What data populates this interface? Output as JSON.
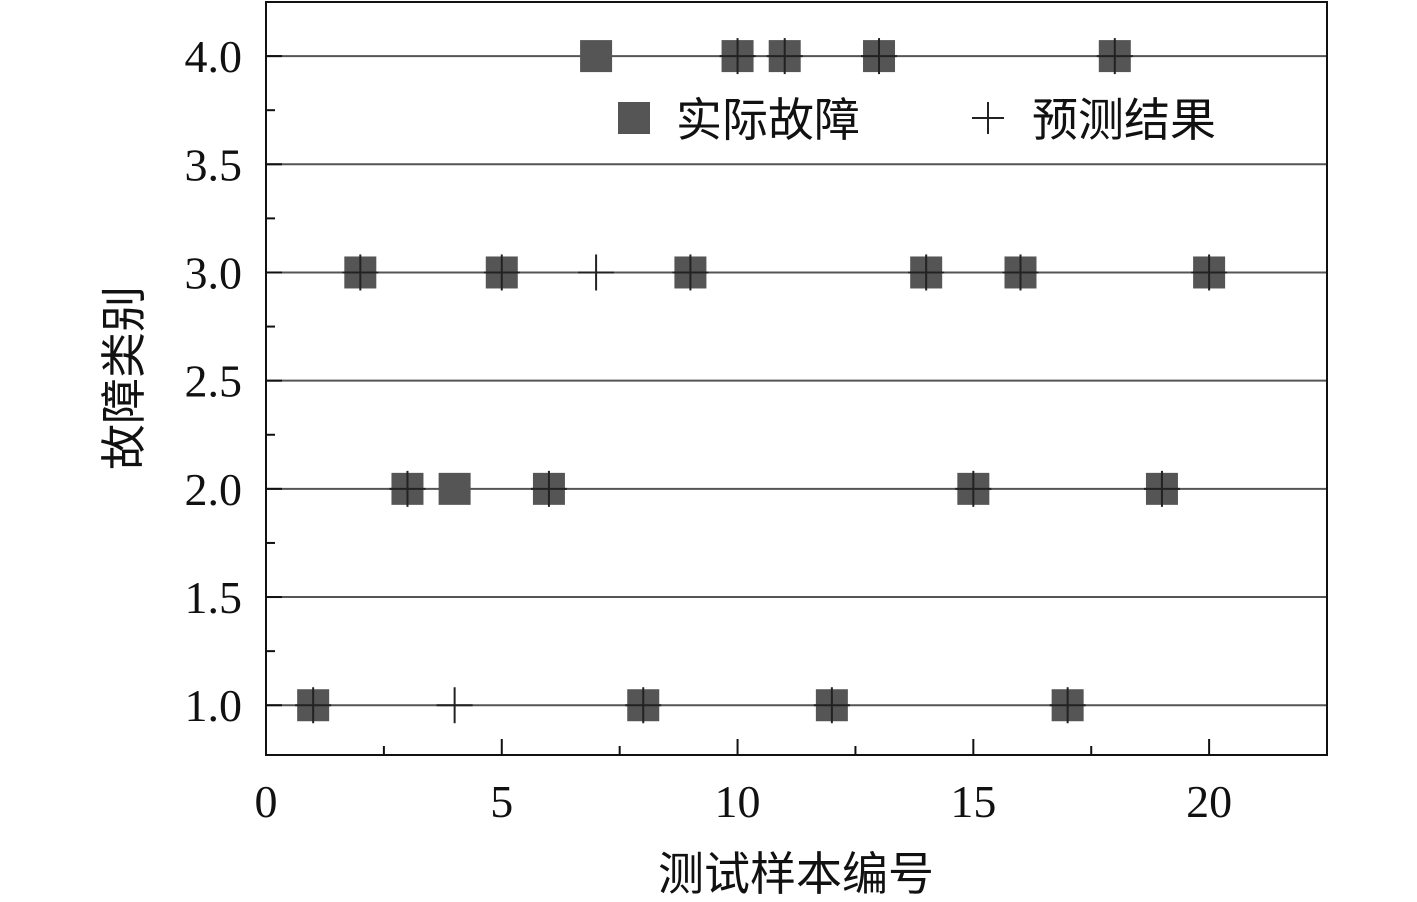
{
  "chart_data": {
    "type": "scatter",
    "xlabel": "测试样本编号",
    "ylabel": "故障类别",
    "xlim": [
      0,
      22.5
    ],
    "ylim": [
      0.77,
      4.25
    ],
    "x_ticks": [
      "0",
      "5",
      "10",
      "15",
      "20"
    ],
    "x_tick_values": [
      0,
      5,
      10,
      15,
      20
    ],
    "y_ticks": [
      "1.0",
      "1.5",
      "2.0",
      "2.5",
      "3.0",
      "3.5",
      "4.0"
    ],
    "y_tick_values": [
      1.0,
      1.5,
      2.0,
      2.5,
      3.0,
      3.5,
      4.0
    ],
    "grid": "horizontal",
    "legend_position": "top-right",
    "series": [
      {
        "name": "实际故障",
        "marker": "square",
        "color": "#555555",
        "points": [
          [
            1,
            1
          ],
          [
            2,
            3
          ],
          [
            3,
            2
          ],
          [
            4,
            2
          ],
          [
            5,
            3
          ],
          [
            6,
            2
          ],
          [
            7,
            4
          ],
          [
            8,
            1
          ],
          [
            9,
            3
          ],
          [
            10,
            4
          ],
          [
            11,
            4
          ],
          [
            12,
            1
          ],
          [
            13,
            4
          ],
          [
            14,
            3
          ],
          [
            15,
            2
          ],
          [
            16,
            3
          ],
          [
            17,
            1
          ],
          [
            18,
            4
          ],
          [
            19,
            2
          ],
          [
            20,
            3
          ]
        ]
      },
      {
        "name": "预测结果",
        "marker": "plus",
        "color": "#222222",
        "points": [
          [
            1,
            1
          ],
          [
            2,
            3
          ],
          [
            3,
            2
          ],
          [
            4,
            1
          ],
          [
            5,
            3
          ],
          [
            6,
            2
          ],
          [
            7,
            3
          ],
          [
            8,
            1
          ],
          [
            9,
            3
          ],
          [
            10,
            4
          ],
          [
            11,
            4
          ],
          [
            12,
            1
          ],
          [
            13,
            4
          ],
          [
            14,
            3
          ],
          [
            15,
            2
          ],
          [
            16,
            3
          ],
          [
            17,
            1
          ],
          [
            18,
            4
          ],
          [
            19,
            2
          ],
          [
            20,
            3
          ]
        ]
      }
    ]
  }
}
